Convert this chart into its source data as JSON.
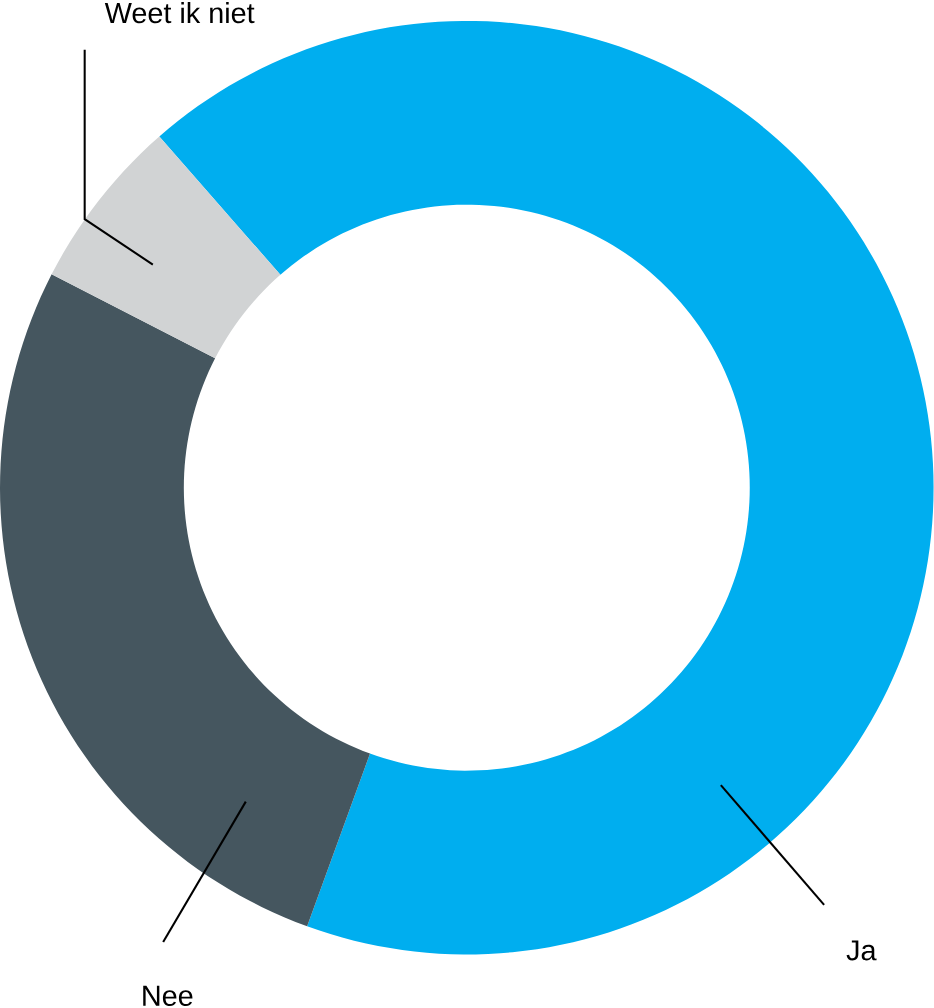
{
  "chart_data": {
    "type": "donut",
    "categories": [
      "Ja",
      "Nee",
      "Weet ik niet"
    ],
    "values": [
      67,
      27,
      6
    ],
    "colors": [
      "#00aeef",
      "#45565f",
      "#d1d3d4"
    ]
  }
}
